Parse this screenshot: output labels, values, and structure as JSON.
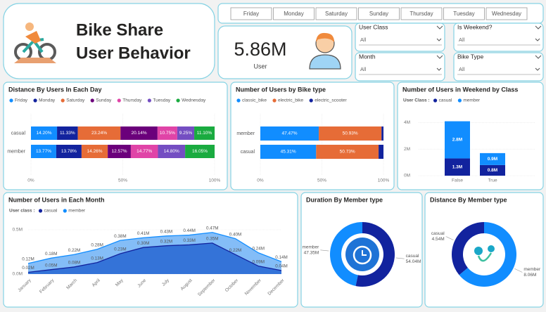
{
  "header": {
    "title": [
      "Bike Share",
      "User Behavior"
    ]
  },
  "day_filter": [
    "Friday",
    "Monday",
    "Saturday",
    "Sunday",
    "Thursday",
    "Tuesday",
    "Wednesday"
  ],
  "kpi": {
    "value": "5.86M",
    "label": "User"
  },
  "slicers": [
    {
      "label": "User Class",
      "value": "All"
    },
    {
      "label": "Is Weekend?",
      "value": "All"
    },
    {
      "label": "Month",
      "value": "All"
    },
    {
      "label": "Bike Type",
      "value": "All"
    }
  ],
  "chart_data": [
    {
      "type": "hbar",
      "title": "Distance By Users In Each Day",
      "categories": [
        "casual",
        "member"
      ],
      "series": [
        {
          "name": "Friday",
          "color": "#118DFF",
          "values": [
            14.2,
            13.77
          ],
          "value_labels": [
            "14.20%",
            "13.77%"
          ]
        },
        {
          "name": "Monday",
          "color": "#12239E",
          "values": [
            11.33,
            13.78
          ],
          "value_labels": [
            "11.33%",
            "13.78%"
          ]
        },
        {
          "name": "Saturday",
          "color": "#E66C37",
          "values": [
            23.24,
            14.26
          ],
          "value_labels": [
            "23.24%",
            "14.26%"
          ]
        },
        {
          "name": "Sunday",
          "color": "#6B007B",
          "values": [
            20.14,
            12.57
          ],
          "value_labels": [
            "20.14%",
            "12.57%"
          ]
        },
        {
          "name": "Thursday",
          "color": "#E044A7",
          "values": [
            10.75,
            14.77
          ],
          "value_labels": [
            "10.75%",
            "14.77%"
          ]
        },
        {
          "name": "Tuesday",
          "color": "#744EC2",
          "values": [
            9.25,
            14.8
          ],
          "value_labels": [
            "9.25%",
            "14.80%"
          ]
        },
        {
          "name": "Wednesday",
          "color": "#1AAB40",
          "values": [
            11.1,
            16.05
          ],
          "value_labels": [
            "11.10%",
            "16.05%"
          ]
        }
      ],
      "xlim": [
        0,
        100
      ],
      "xticks": [
        {
          "value": 0,
          "label": "0%"
        },
        {
          "value": 50,
          "label": "50%"
        },
        {
          "value": 100,
          "label": "100%"
        }
      ],
      "grid": true
    },
    {
      "type": "hbar",
      "title": "Number of Users by Bike type",
      "categories": [
        "member",
        "casual"
      ],
      "series": [
        {
          "name": "classic_bike",
          "color": "#118DFF",
          "values": [
            47.47,
            45.31
          ],
          "value_labels": [
            "47.47%",
            "45.31%"
          ]
        },
        {
          "name": "electric_bike",
          "color": "#E66C37",
          "values": [
            50.93,
            50.73
          ],
          "value_labels": [
            "50.93%",
            "50.73%"
          ]
        },
        {
          "name": "electric_scooter",
          "color": "#12239E",
          "values": [
            1.6,
            3.96
          ]
        }
      ],
      "xlim": [
        0,
        100
      ],
      "xticks": [
        {
          "value": 0,
          "label": "0%"
        },
        {
          "value": 50,
          "label": "50%"
        },
        {
          "value": 100,
          "label": "100%"
        }
      ],
      "grid": true
    },
    {
      "type": "bar",
      "title": "Number of Users in Weekend by Class",
      "legend_title": "User Class :",
      "categories": [
        "False",
        "True"
      ],
      "series": [
        {
          "name": "casual",
          "color": "#12239E",
          "values": [
            1300000,
            800000
          ],
          "value_labels": [
            "1.3M",
            "0.8M"
          ]
        },
        {
          "name": "member",
          "color": "#118DFF",
          "values": [
            2800000,
            900000
          ],
          "value_labels": [
            "2.8M",
            "0.9M"
          ]
        }
      ],
      "ylim": [
        0,
        4500000
      ],
      "yticks": [
        {
          "value": 0,
          "label": "0M"
        },
        {
          "value": 2000000,
          "label": "2M"
        },
        {
          "value": 4000000,
          "label": "4M"
        }
      ],
      "grid": true
    },
    {
      "type": "area",
      "title": "Number of Users in Each Month",
      "legend_title": "User class :",
      "categories": [
        "January",
        "February",
        "March",
        "April",
        "May",
        "June",
        "July",
        "August",
        "September",
        "October",
        "November",
        "December"
      ],
      "series": [
        {
          "name": "casual",
          "color": "#12239E",
          "values": [
            20000,
            50000,
            80000,
            130000,
            230000,
            300000,
            320000,
            330000,
            350000,
            220000,
            90000,
            40000
          ],
          "value_labels": [
            "0.02M",
            "0.05M",
            "0.08M",
            "0.13M",
            "0.23M",
            "0.30M",
            "0.32M",
            "0.33M",
            "0.35M",
            "0.22M",
            "0.09M",
            "0.04M"
          ]
        },
        {
          "name": "member",
          "color": "#118DFF",
          "values": [
            120000,
            180000,
            220000,
            280000,
            380000,
            410000,
            430000,
            440000,
            470000,
            400000,
            240000,
            140000
          ],
          "value_labels": [
            "0.12M",
            "0.18M",
            "0.22M",
            "0.28M",
            "0.38M",
            "0.41M",
            "0.43M",
            "0.44M",
            "0.47M",
            "0.40M",
            "0.24M",
            "0.14M"
          ]
        }
      ],
      "ylim": [
        0,
        500000
      ],
      "yticks": [
        {
          "value": 0,
          "label": "0.0M"
        },
        {
          "value": 500000,
          "label": "0.5M"
        }
      ]
    },
    {
      "type": "donut",
      "title": "Duration By Member type",
      "categories": [
        "member",
        "casual"
      ],
      "colors": [
        "#118DFF",
        "#12239E"
      ],
      "values": [
        47350000,
        54040000
      ],
      "value_labels": [
        "47.35M",
        "54.04M"
      ]
    },
    {
      "type": "donut",
      "title": "Distance By Member type",
      "categories": [
        "casual",
        "member"
      ],
      "colors": [
        "#12239E",
        "#118DFF"
      ],
      "values": [
        4540000,
        8060000
      ],
      "value_labels": [
        "4.54M",
        "8.06M"
      ]
    }
  ]
}
